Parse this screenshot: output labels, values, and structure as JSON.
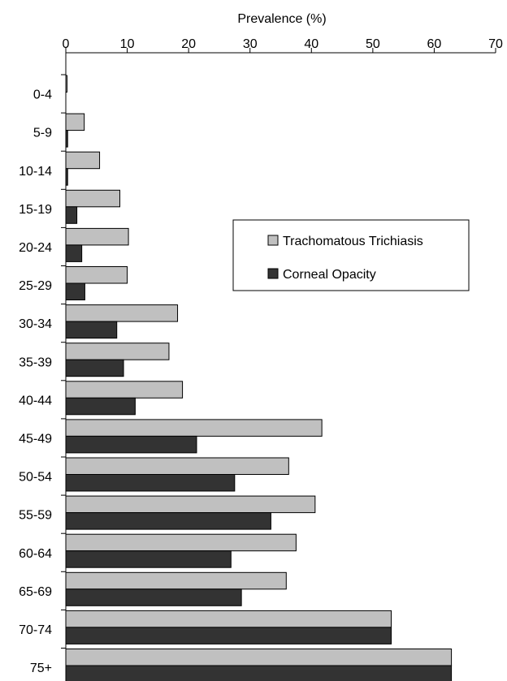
{
  "chart_data": {
    "type": "bar",
    "orientation": "horizontal",
    "xlabel": "Prevalence (%)",
    "xlabel_position": "top",
    "xlim": [
      0,
      70
    ],
    "xticks": [
      0,
      10,
      20,
      30,
      40,
      50,
      60,
      70
    ],
    "grid": false,
    "categories": [
      "0-4",
      "5-9",
      "10-14",
      "15-19",
      "20-24",
      "25-29",
      "30-34",
      "35-39",
      "40-44",
      "45-49",
      "50-54",
      "55-59",
      "60-64",
      "65-69",
      "70-74",
      "75+"
    ],
    "series": [
      {
        "name": "Trachomatous Trichiasis",
        "color": "#c0c0c0",
        "values": [
          0.2,
          3.0,
          5.5,
          8.8,
          10.2,
          10.0,
          18.2,
          16.8,
          19.0,
          41.7,
          36.3,
          40.6,
          37.5,
          35.9,
          53.0,
          62.8
        ]
      },
      {
        "name": "Corneal Opacity",
        "color": "#333333",
        "values": [
          0.0,
          0.3,
          0.3,
          1.8,
          2.6,
          3.1,
          8.3,
          9.4,
          11.3,
          21.3,
          27.5,
          33.4,
          26.9,
          28.6,
          53.0,
          62.8
        ]
      }
    ],
    "legend_position": "right"
  }
}
